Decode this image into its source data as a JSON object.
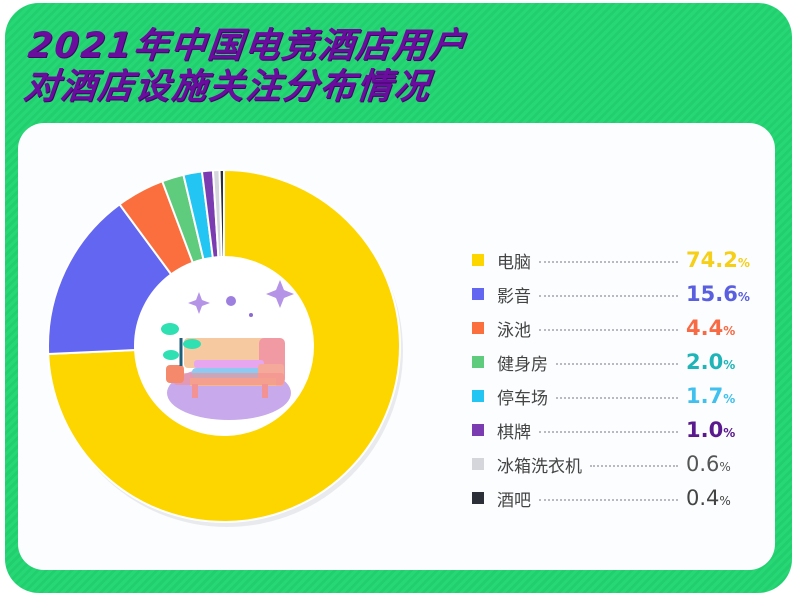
{
  "title": {
    "line1": "2021年中国电竞酒店用户",
    "line2": "对酒店设施关注分布情况"
  },
  "colors": {
    "card_bg": "#25d573",
    "title": "#6a0d9e",
    "panel_bg": "#fbfdfe"
  },
  "center_illustration": "sofa-bed-icon",
  "legend": [
    {
      "label": "电脑",
      "value": "74.2",
      "pct": "%",
      "color": "#fdd600",
      "text_color": "#f5cf18"
    },
    {
      "label": "影音",
      "value": "15.6",
      "pct": "%",
      "color": "#6366f0",
      "text_color": "#5a5fe0"
    },
    {
      "label": "泳池",
      "value": "4.4",
      "pct": "%",
      "color": "#fb6f3f",
      "text_color": "#f76a44"
    },
    {
      "label": "健身房",
      "value": "2.0",
      "pct": "%",
      "color": "#5fcb7c",
      "text_color": "#1fb5b8"
    },
    {
      "label": "停车场",
      "value": "1.7",
      "pct": "%",
      "color": "#23c6f2",
      "text_color": "#3fc0ee"
    },
    {
      "label": "棋牌",
      "value": "1.0",
      "pct": "%",
      "color": "#7b3bb1",
      "text_color": "#5a1a8e"
    },
    {
      "label": "冰箱洗衣机",
      "value": "0.6",
      "pct": "%",
      "color": "#d4d6dc",
      "text_color": "#555555"
    },
    {
      "label": "酒吧",
      "value": "0.4",
      "pct": "%",
      "color": "#2d2f38",
      "text_color": "#444444"
    }
  ],
  "chart_data": {
    "type": "pie",
    "variant": "donut",
    "title": "2021年中国电竞酒店用户对酒店设施关注分布情况",
    "categories": [
      "电脑",
      "影音",
      "泳池",
      "健身房",
      "停车场",
      "棋牌",
      "冰箱洗衣机",
      "酒吧"
    ],
    "values": [
      74.2,
      15.6,
      4.4,
      2.0,
      1.7,
      1.0,
      0.6,
      0.4
    ],
    "unit": "%",
    "colors": [
      "#fdd600",
      "#6366f0",
      "#fb6f3f",
      "#5fcb7c",
      "#23c6f2",
      "#7b3bb1",
      "#d4d6dc",
      "#2d2f38"
    ],
    "start_angle": "12 o'clock",
    "direction": "clockwise",
    "legend_position": "right"
  }
}
